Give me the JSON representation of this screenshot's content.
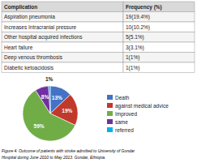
{
  "chart_data": [
    {
      "type": "table",
      "columns": [
        "Complication",
        "Frequency (%)"
      ],
      "rows": [
        [
          "Aspiration pneumonia",
          "19(19.4%)"
        ],
        [
          "Increases Intracranial pressure",
          "10(10.2%)"
        ],
        [
          "Other hospital acquired infections",
          "5(5.1%)"
        ],
        [
          "Heart failure",
          "3(3.1%)"
        ],
        [
          "Deep venous thrombosis",
          "1(1%)"
        ],
        [
          "Diabetic ketoacidosis",
          "1(1%)"
        ]
      ]
    },
    {
      "type": "pie",
      "categories": [
        "Death",
        "against medical advice",
        "Improved",
        "same",
        "referred"
      ],
      "values": [
        13,
        19,
        59,
        8,
        1
      ],
      "value_labels": [
        "13%",
        "19%",
        "59%",
        "8%",
        "1%"
      ],
      "colors": [
        "#4472c4",
        "#c0392b",
        "#70ad47",
        "#7030a0",
        "#00b0f0"
      ],
      "data_labels": true,
      "legend": "right",
      "annotations": [
        "Figure 4. Outcome of patients with stroke admitted to University of Gondar",
        "Hospital during June 2010 to May 2013. Gondar, Ethiopia."
      ]
    }
  ]
}
